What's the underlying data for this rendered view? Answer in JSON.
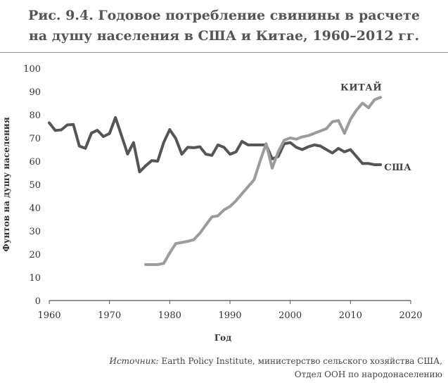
{
  "title_line1": "Рис. 9.4. Годовое потребление свинины в расчете",
  "title_line2": "на душу населения в США и Китае, 1960–2012 гг.",
  "source_label": "Источник:",
  "source_line1": "Earth Policy Institute, министерство сельского хозяйства США,",
  "source_line2": "Отдел ООН по народонаселению",
  "chart_data": {
    "type": "line",
    "xlabel": "Год",
    "ylabel": "Фунтов на душу населения",
    "xlim": [
      1960,
      2020
    ],
    "ylim": [
      0,
      100
    ],
    "x_ticks": [
      1960,
      1970,
      1980,
      1990,
      2000,
      2010,
      2020
    ],
    "y_ticks": [
      0,
      10,
      20,
      30,
      40,
      50,
      60,
      70,
      80,
      90,
      100
    ],
    "grid": false,
    "series": [
      {
        "name": "США",
        "color": "#555555",
        "x": [
          1960,
          1961,
          1962,
          1963,
          1964,
          1965,
          1966,
          1967,
          1968,
          1969,
          1970,
          1971,
          1972,
          1973,
          1974,
          1975,
          1976,
          1977,
          1978,
          1979,
          1980,
          1981,
          1982,
          1983,
          1984,
          1985,
          1986,
          1987,
          1988,
          1989,
          1990,
          1991,
          1992,
          1993,
          1994,
          1995,
          1996,
          1997,
          1998,
          1999,
          2000,
          2001,
          2002,
          2003,
          2004,
          2005,
          2006,
          2007,
          2008,
          2009,
          2010,
          2011,
          2012,
          2013,
          2014,
          2015
        ],
        "values": [
          76.5,
          73.2,
          73.5,
          75.6,
          75.8,
          66.5,
          65.5,
          72.1,
          73.3,
          70.6,
          71.9,
          78.8,
          71.0,
          63.1,
          68.0,
          55.4,
          58.0,
          60.2,
          60.0,
          68.1,
          73.6,
          69.8,
          63.0,
          66.0,
          65.8,
          66.2,
          63.0,
          62.5,
          67.0,
          66.0,
          63.0,
          64.0,
          68.5,
          67.0,
          67.0,
          67.0,
          67.0,
          61.0,
          62.0,
          67.5,
          68.0,
          66.0,
          65.0,
          66.2,
          67.0,
          66.5,
          65.0,
          63.5,
          65.5,
          64.0,
          65.0,
          62.0,
          59.0,
          59.0,
          58.5,
          58.5
        ]
      },
      {
        "name": "КИТАЙ",
        "color": "#9b9b9b",
        "x": [
          1976,
          1977,
          1978,
          1979,
          1980,
          1981,
          1982,
          1983,
          1984,
          1985,
          1986,
          1987,
          1988,
          1989,
          1990,
          1991,
          1992,
          1993,
          1994,
          1995,
          1996,
          1997,
          1998,
          1999,
          2000,
          2001,
          2002,
          2003,
          2004,
          2005,
          2006,
          2007,
          2008,
          2009,
          2010,
          2011,
          2012,
          2013,
          2014,
          2015
        ],
        "values": [
          15.5,
          15.5,
          15.5,
          16.0,
          20.5,
          24.5,
          25.0,
          25.5,
          26.2,
          29.0,
          32.5,
          36.0,
          36.5,
          39.0,
          40.5,
          43.0,
          46.0,
          49.0,
          52.0,
          60.0,
          67.5,
          57.0,
          64.0,
          69.0,
          70.0,
          69.5,
          70.5,
          71.0,
          72.0,
          73.0,
          74.0,
          77.0,
          77.5,
          72.0,
          78.0,
          82.0,
          85.0,
          83.0,
          86.5,
          87.5
        ]
      }
    ],
    "annotations": [
      {
        "text": "КИТАЙ",
        "series": "КИТАЙ"
      },
      {
        "text": "США",
        "series": "США"
      }
    ]
  }
}
